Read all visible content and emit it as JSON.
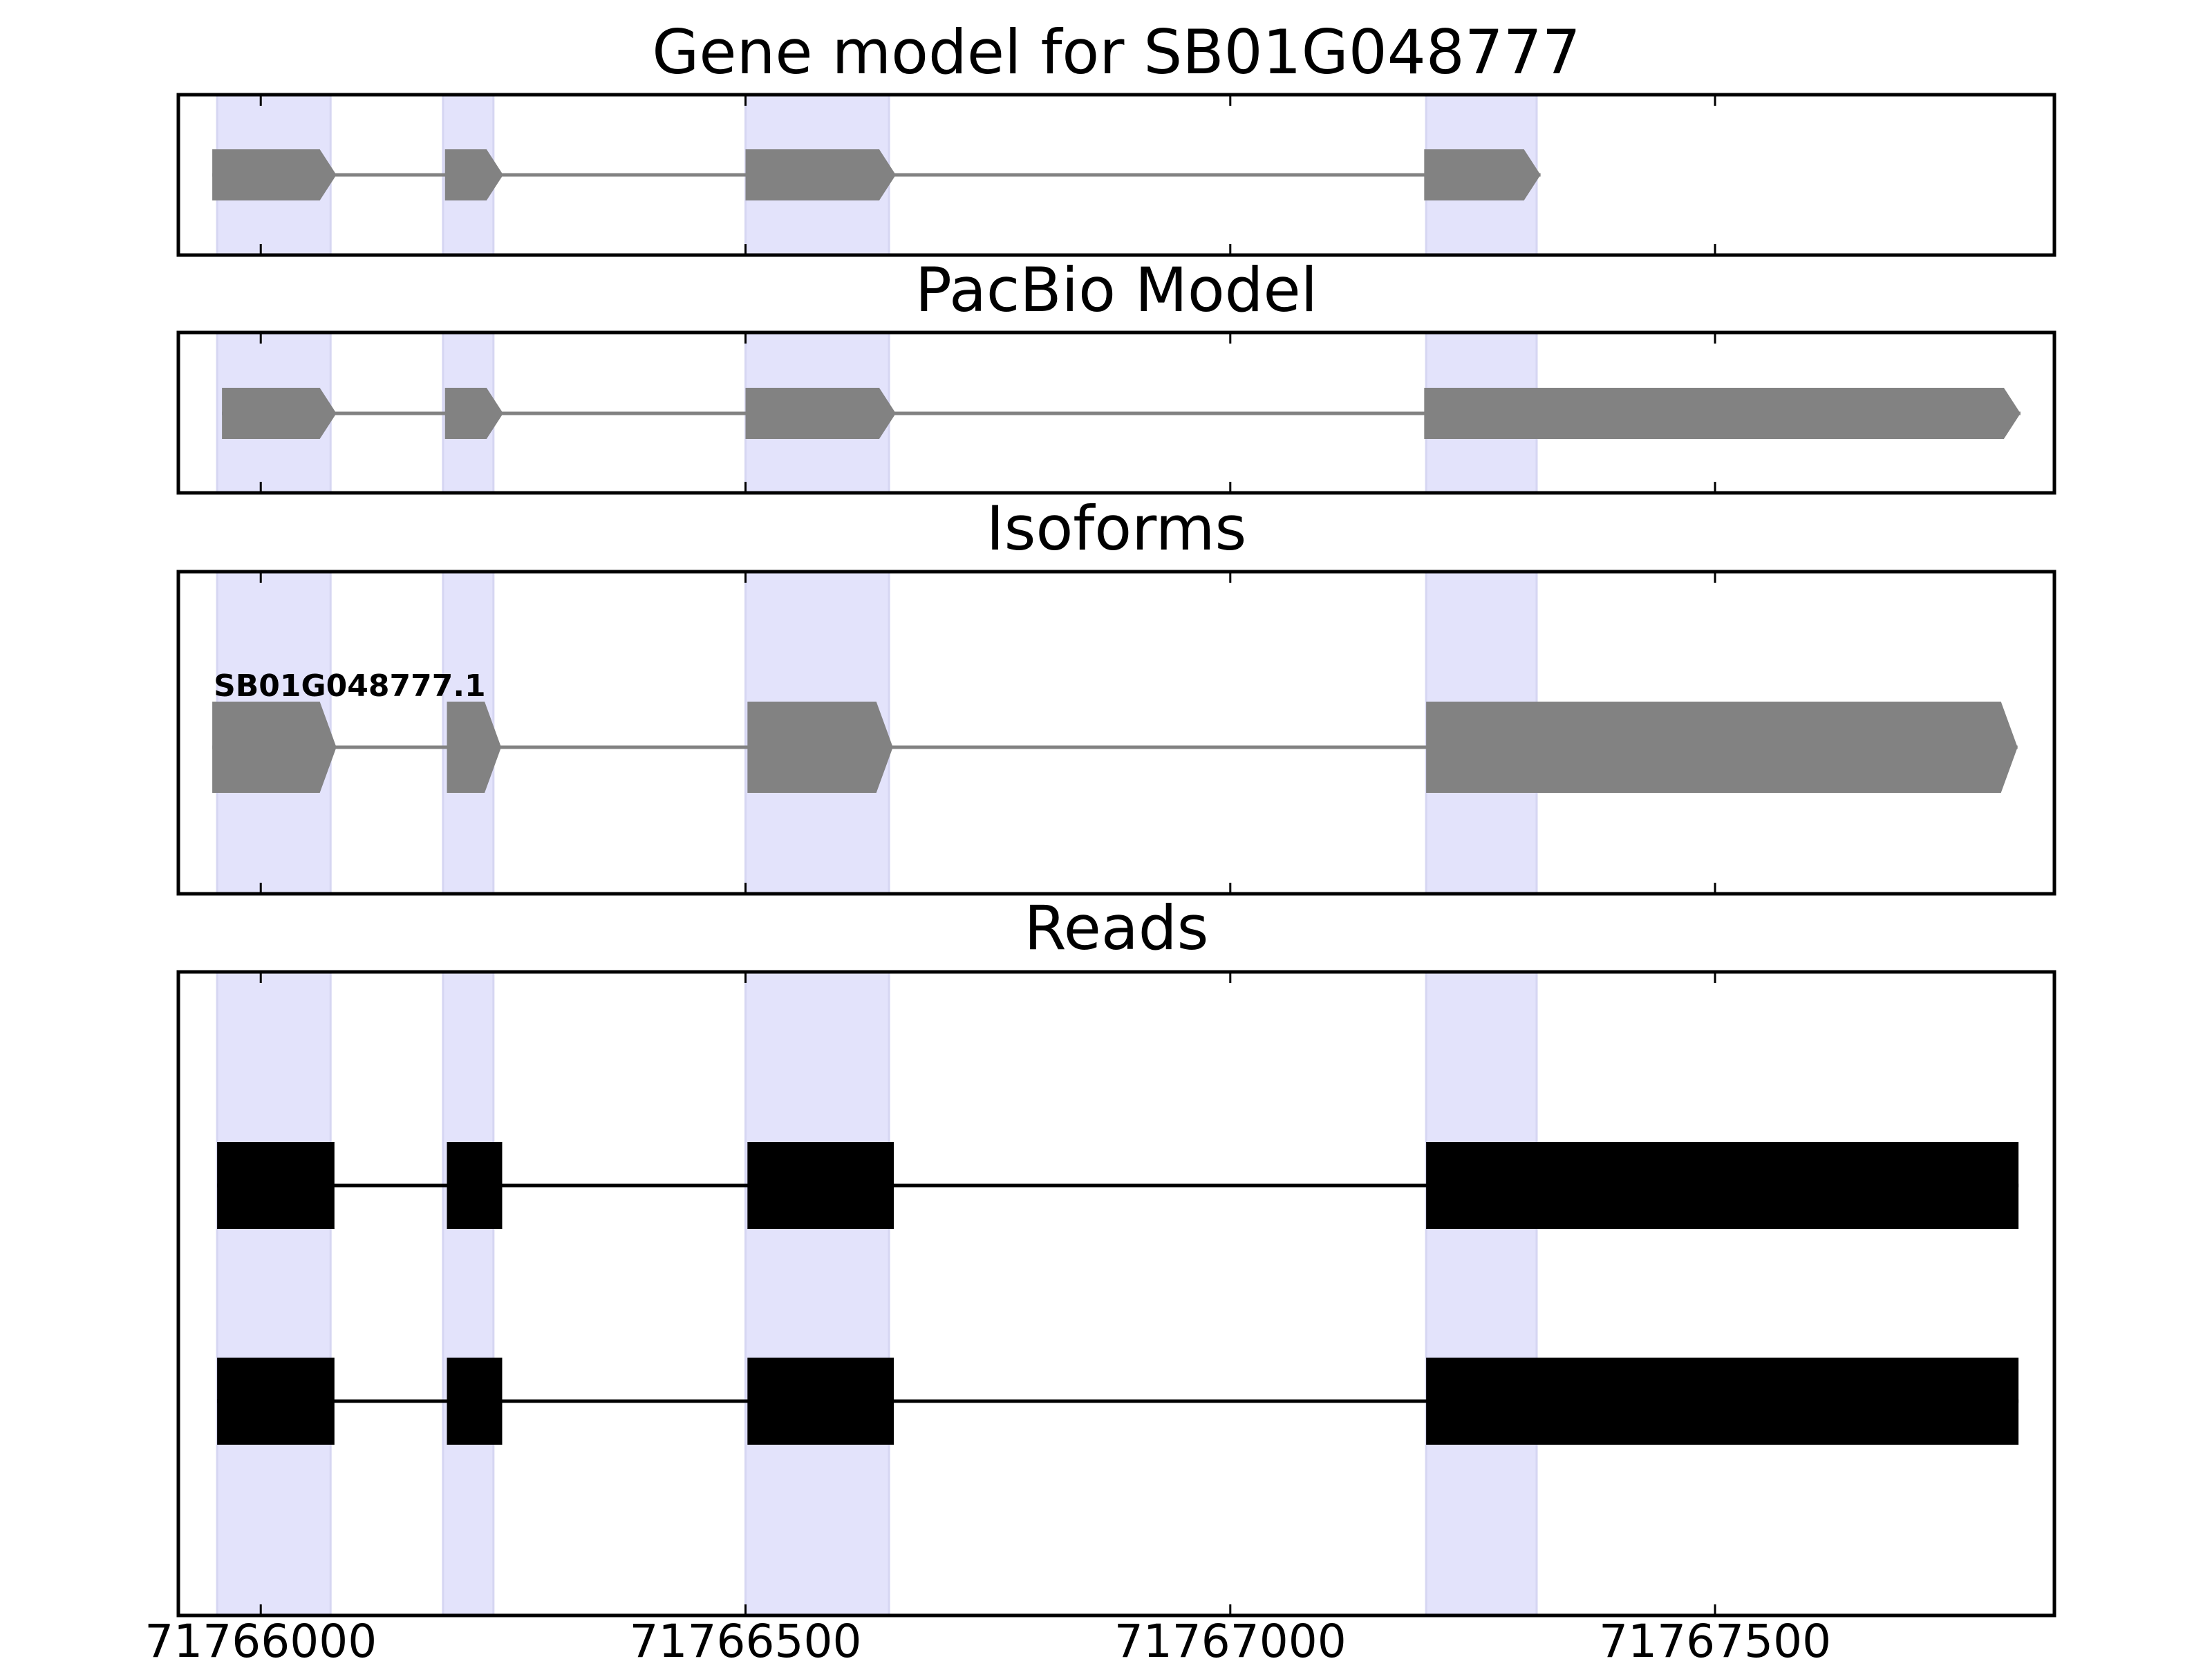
{
  "chart_data": {
    "type": "gene-track",
    "title": "Gene model for SB01G048777",
    "x_axis": {
      "range": [
        71765915,
        71767850
      ],
      "ticks": [
        71766000,
        71766500,
        71767000,
        71767500
      ],
      "tick_labels": [
        "71766000",
        "71766500",
        "71767000",
        "71767500"
      ]
    },
    "highlight_regions": [
      [
        71765955,
        71766072
      ],
      [
        71766188,
        71766240
      ],
      [
        71766500,
        71766648
      ],
      [
        71767202,
        71767316
      ]
    ],
    "colors": {
      "highlight": "#e3e3fb",
      "model": "#828282",
      "read": "#000000",
      "frame": "#000000"
    },
    "panels": [
      {
        "title": "Gene model for SB01G048777",
        "kind": "model",
        "rows": [
          {
            "label": "",
            "exons": [
              [
                71765950,
                71766078
              ],
              [
                71766190,
                71766250
              ],
              [
                71766500,
                71766655
              ],
              [
                71767200,
                71767320
              ]
            ]
          }
        ]
      },
      {
        "title": "PacBio Model",
        "kind": "model",
        "rows": [
          {
            "label": "",
            "exons": [
              [
                71765960,
                71766078
              ],
              [
                71766190,
                71766250
              ],
              [
                71766500,
                71766655
              ],
              [
                71767200,
                71767815
              ]
            ]
          }
        ]
      },
      {
        "title": "Isoforms",
        "kind": "model",
        "rows": [
          {
            "label": "SB01G048777.1",
            "exons": [
              [
                71765950,
                71766078
              ],
              [
                71766192,
                71766248
              ],
              [
                71766502,
                71766652
              ],
              [
                71767202,
                71767812
              ]
            ]
          }
        ]
      },
      {
        "title": "Reads",
        "kind": "reads",
        "rows": [
          {
            "label": "",
            "exons": [
              [
                71765955,
                71766076
              ],
              [
                71766192,
                71766249
              ],
              [
                71766502,
                71766653
              ],
              [
                71767202,
                71767813
              ]
            ]
          },
          {
            "label": "",
            "exons": [
              [
                71765955,
                71766076
              ],
              [
                71766192,
                71766249
              ],
              [
                71766502,
                71766653
              ],
              [
                71767202,
                71767813
              ]
            ]
          }
        ]
      }
    ]
  }
}
